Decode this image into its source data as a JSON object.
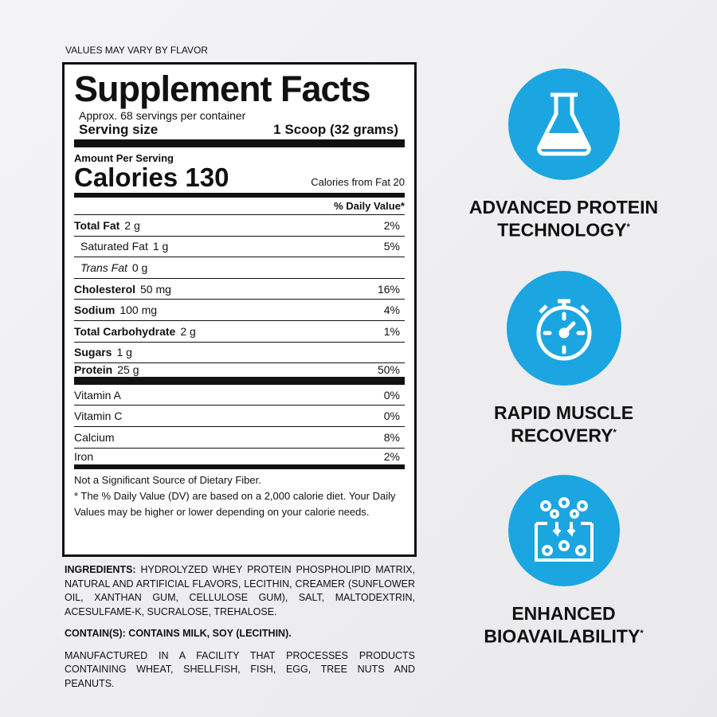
{
  "note": "VALUES MAY VARY BY FLAVOR",
  "facts": {
    "title": "Supplement Facts",
    "servings": "Approx. 68 servings per container",
    "serving_size_label": "Serving size",
    "serving_size": "1 Scoop (32 grams)",
    "amount_per_serving": "Amount Per Serving",
    "calories": "Calories 130",
    "calories_from_fat": "Calories from Fat 20",
    "dv_header": "% Daily Value*",
    "nutrients": [
      {
        "name": "Total Fat",
        "amount": "2 g",
        "dv": "2%",
        "bold": true
      },
      {
        "name": "Saturated Fat",
        "amount": "1 g",
        "dv": "5%",
        "indent": true
      },
      {
        "name": "Trans Fat",
        "amount": "0 g",
        "dv": "",
        "indent": true,
        "italic": true
      },
      {
        "name": "Cholesterol",
        "amount": "50 mg",
        "dv": "16%",
        "bold": true
      },
      {
        "name": "Sodium",
        "amount": "100 mg",
        "dv": "4%",
        "bold": true
      },
      {
        "name": "Total Carbohydrate",
        "amount": "2 g",
        "dv": "1%",
        "bold": true
      },
      {
        "name": "Sugars",
        "amount": "1 g",
        "dv": "",
        "bold": true
      },
      {
        "name": "Protein",
        "amount": "25 g",
        "dv": "50%",
        "bold": true
      }
    ],
    "vitamins": [
      {
        "name": "Vitamin A",
        "dv": "0%"
      },
      {
        "name": "Vitamin C",
        "dv": "0%"
      },
      {
        "name": "Calcium",
        "dv": "8%"
      },
      {
        "name": "Iron",
        "dv": "2%"
      }
    ],
    "footnote1": "Not a Significant Source of Dietary Fiber.",
    "footnote2": "* The % Daily Value (DV) are based on a 2,000 calorie diet. Your Daily Values may be higher or lower depending on your calorie needs."
  },
  "ingredients_label": "INGREDIENTS:",
  "ingredients": "HYDROLYZED WHEY PROTEIN PHOSPHOLIPID MATRIX, NATURAL AND ARTIFICIAL FLAVORS, LECITHIN, CREAMER (SUNFLOWER OIL, XANTHAN GUM, CELLULOSE GUM), SALT, MALTODEXTRIN, ACESULFAME-K, SUCRALOSE, TREHALOSE.",
  "contains": "CONTAIN(S): CONTAINS MILK, SOY (LECITHIN).",
  "facility": "MANUFACTURED IN A FACILITY THAT PROCESSES PRODUCTS CONTAINING WHEAT, SHELLFISH, FISH, EGG, TREE NUTS AND PEANUTS.",
  "features": [
    {
      "line1": "ADVANCED PROTEIN",
      "line2": "TECHNOLOGY",
      "mark": "*",
      "icon": "flask-icon"
    },
    {
      "line1": "RAPID MUSCLE",
      "line2": "RECOVERY",
      "mark": "*",
      "icon": "stopwatch-icon"
    },
    {
      "line1": "ENHANCED",
      "line2": "BIOAVAILABILITY",
      "mark": "*",
      "icon": "molecules-icon"
    }
  ],
  "accent": "#1ba6e1"
}
